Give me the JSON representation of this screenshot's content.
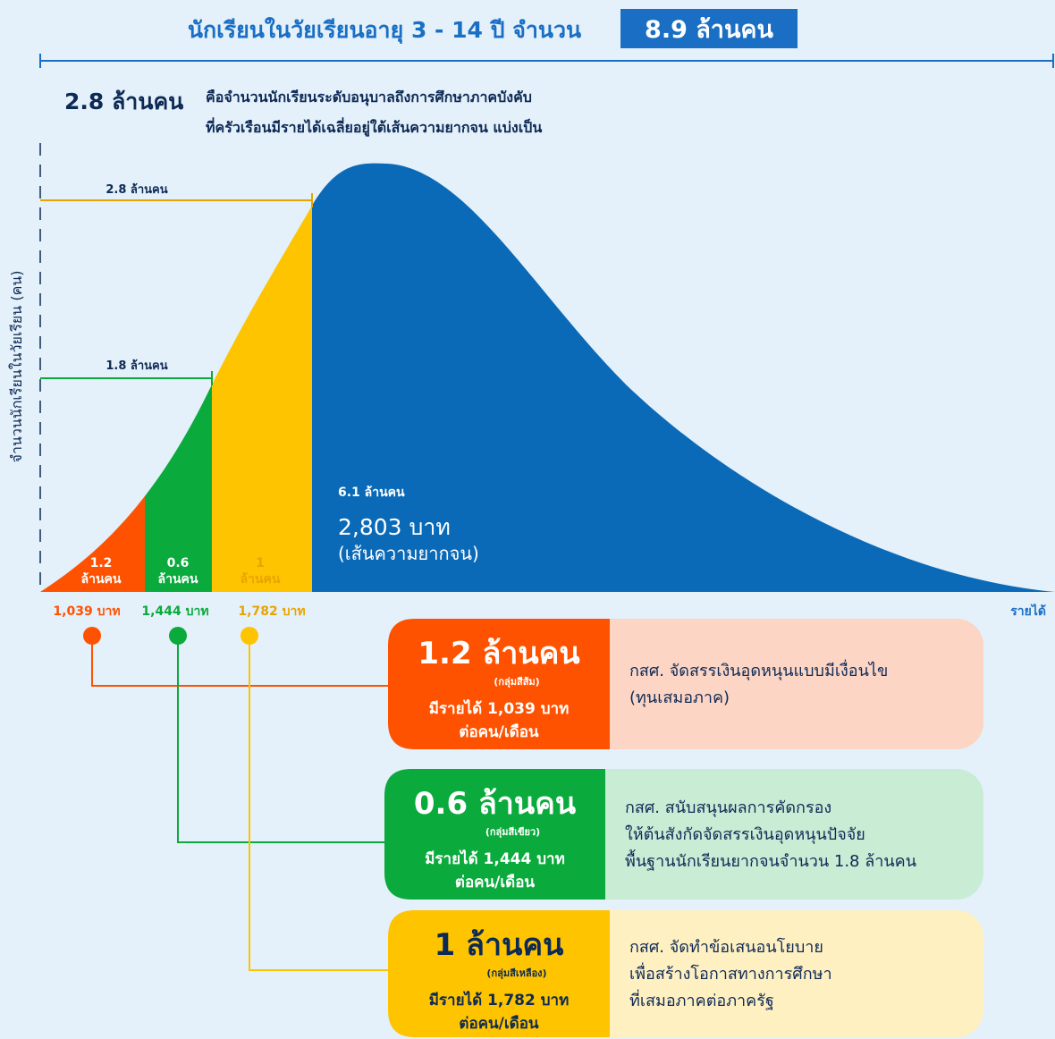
{
  "title": "นักเรียนในวัยเรียนอายุ 3 - 14 ปี จำนวน",
  "title_total": "8.9 ล้านคน",
  "summary": {
    "amount": "2.8 ล้านคน",
    "lines": [
      "คือจำนวนนักเรียนระดับอนุบาลถึงการศึกษาภาคบังคับ",
      "ที่ครัวเรือนมีรายได้เฉลี่ยอยู่ใต้เส้นความยากจน แบ่งเป็น"
    ]
  },
  "y_axis_label": "จำนวนนักเรียนในวัยเรียน (คน)",
  "x_axis_label": "รายได้",
  "brackets": [
    {
      "label": "2.8 ล้านคน"
    },
    {
      "label": "1.8 ล้านคน"
    }
  ],
  "segments": [
    {
      "lines": [
        "1.2",
        "ล้านคน"
      ],
      "income": "1,039 บาท"
    },
    {
      "lines": [
        "0.6",
        "ล้านคน"
      ],
      "income": "1,444 บาท"
    },
    {
      "lines": [
        "1",
        "ล้านคน"
      ],
      "income": "1,782 บาท"
    }
  ],
  "poverty": {
    "count": "6.1 ล้านคน",
    "line": "2,803 บาท",
    "note": "(เส้นความยากจน)"
  },
  "cards": [
    {
      "title": "1.2 ล้านคน",
      "group": "(กลุ่มสีส้ม)",
      "income_lines": [
        "มีรายได้ 1,039 บาท",
        "ต่อคน/เดือน"
      ],
      "description": [
        "กสศ. จัดสรรเงินอุดหนุนแบบมีเงื่อนไข",
        "(ทุนเสมอภาค)"
      ]
    },
    {
      "title": "0.6 ล้านคน",
      "group": "(กลุ่มสีเขียว)",
      "income_lines": [
        "มีรายได้ 1,444 บาท",
        "ต่อคน/เดือน"
      ],
      "description": [
        "กสศ. สนับสนุนผลการคัดกรอง",
        "ให้ต้นสังกัดจัดสรรเงินอุดหนุนปัจจัย",
        "พื้นฐานนักเรียนยากจนจำนวน 1.8 ล้านคน"
      ]
    },
    {
      "title": "1 ล้านคน",
      "group": "(กลุ่มสีเหลือง)",
      "income_lines": [
        "มีรายได้ 1,782 บาท",
        "ต่อคน/เดือน"
      ],
      "description": [
        "กสศ. จัดทำข้อเสนอนโยบาย",
        "เพื่อสร้างโอกาสทางการศึกษา",
        "ที่เสมอภาคต่อภาครัฐ"
      ]
    }
  ]
}
